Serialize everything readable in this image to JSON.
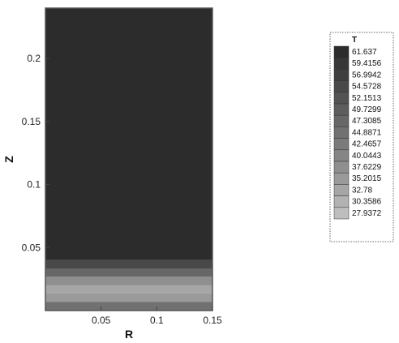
{
  "chart_data": {
    "type": "heatmap",
    "title": "",
    "xlabel": "R",
    "ylabel": "Z",
    "xlim": [
      0,
      0.15
    ],
    "ylim": [
      0,
      0.24
    ],
    "x_ticks": [
      0.05,
      0.1,
      0.15
    ],
    "x_tick_labels": [
      "0.05",
      "0.1",
      "0.15"
    ],
    "y_ticks": [
      0.05,
      0.1,
      0.15,
      0.2
    ],
    "y_tick_labels": [
      "0.05",
      "0.1",
      "0.15",
      "0.2"
    ],
    "legend": {
      "title": "T",
      "position": "right",
      "levels": [
        "61.637",
        "59.4156",
        "56.9942",
        "54.5728",
        "52.1513",
        "49.7299",
        "47.3085",
        "44.8871",
        "42.4657",
        "40.0443",
        "37.6229",
        "35.2015",
        "32.78",
        "30.3586",
        "27.9372"
      ]
    },
    "bands": [
      {
        "z_from": 0.0,
        "z_to": 0.007,
        "T": 44.8871
      },
      {
        "z_from": 0.007,
        "z_to": 0.014,
        "T": 35.2015
      },
      {
        "z_from": 0.014,
        "z_to": 0.02,
        "T": 32.78
      },
      {
        "z_from": 0.02,
        "z_to": 0.027,
        "T": 37.6229
      },
      {
        "z_from": 0.027,
        "z_to": 0.033,
        "T": 47.3085
      },
      {
        "z_from": 0.033,
        "z_to": 0.04,
        "T": 54.5728
      },
      {
        "z_from": 0.04,
        "z_to": 0.24,
        "T": 61.637
      }
    ],
    "grid": false
  },
  "colors": {
    "background": "#ffffff",
    "plot_frame": "#555555",
    "legend_scale": [
      "#2c2c2c",
      "#363636",
      "#3f3f3f",
      "#494949",
      "#535353",
      "#5d5d5d",
      "#676767",
      "#717171",
      "#7b7b7b",
      "#858585",
      "#8f8f8f",
      "#9a9a9a",
      "#a6a6a6",
      "#b2b2b2",
      "#bebebe"
    ]
  }
}
